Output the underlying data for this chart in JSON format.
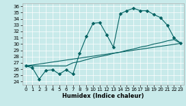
{
  "xlabel": "Humidex (Indice chaleur)",
  "bg_color": "#c8eaea",
  "line_color": "#006060",
  "xlim": [
    -0.5,
    23.5
  ],
  "ylim": [
    23.5,
    36.5
  ],
  "xticks": [
    0,
    1,
    2,
    3,
    4,
    5,
    6,
    7,
    8,
    9,
    10,
    11,
    12,
    13,
    14,
    15,
    16,
    17,
    18,
    19,
    20,
    21,
    22,
    23
  ],
  "yticks": [
    24,
    25,
    26,
    27,
    28,
    29,
    30,
    31,
    32,
    33,
    34,
    35,
    36
  ],
  "line1_x": [
    0,
    1,
    2,
    3,
    4,
    5,
    6,
    7,
    8,
    9,
    10,
    11,
    12,
    13,
    14,
    15,
    16,
    17,
    18,
    19,
    20,
    21,
    22,
    23
  ],
  "line1_y": [
    26.5,
    26.2,
    24.4,
    25.8,
    25.9,
    25.2,
    25.9,
    25.2,
    28.5,
    31.2,
    33.3,
    33.4,
    31.5,
    29.5,
    34.8,
    35.3,
    35.7,
    35.3,
    35.3,
    34.7,
    34.2,
    33.0,
    31.0,
    30.1
  ],
  "line2_x": [
    0,
    23
  ],
  "line2_y": [
    26.5,
    30.1
  ],
  "line3_x": [
    0,
    1,
    2,
    3,
    4,
    5,
    6,
    7,
    8,
    9,
    10,
    11,
    12,
    13,
    14,
    15,
    16,
    17,
    18,
    19,
    20,
    21,
    22,
    23
  ],
  "line3_y": [
    26.5,
    26.5,
    26.5,
    26.5,
    26.5,
    26.5,
    26.5,
    27.0,
    27.2,
    27.5,
    27.8,
    28.0,
    28.2,
    28.5,
    28.7,
    29.0,
    29.2,
    29.5,
    29.7,
    30.0,
    30.2,
    30.5,
    30.7,
    30.1
  ],
  "marker_size": 2.5
}
